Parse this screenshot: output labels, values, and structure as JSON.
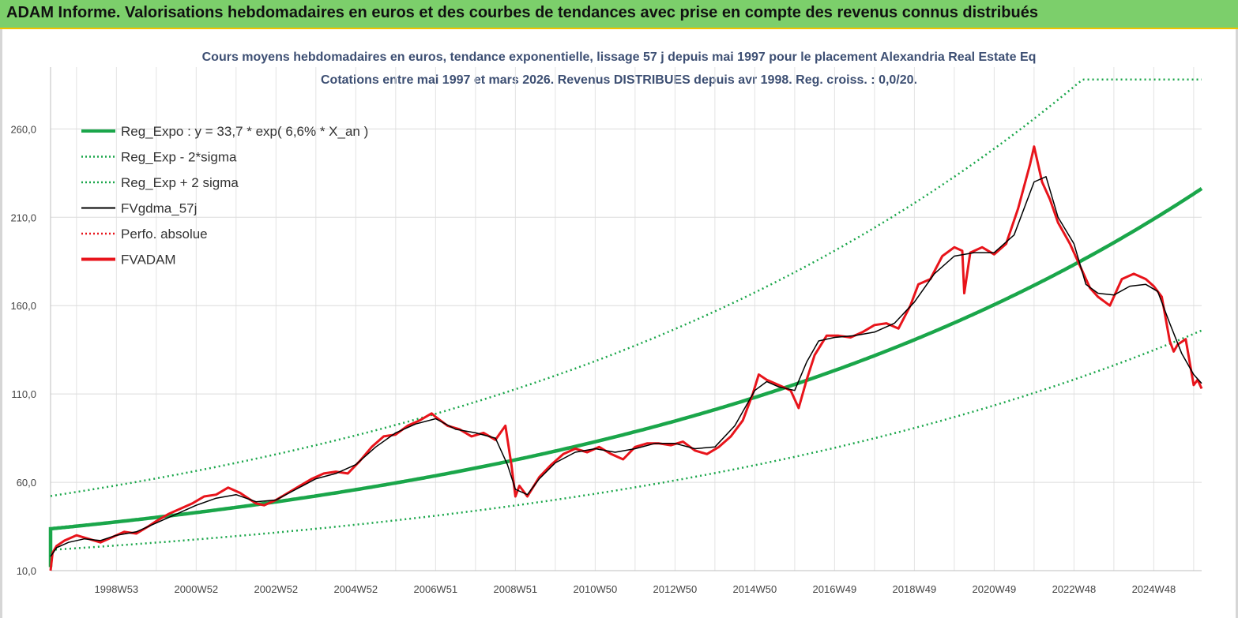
{
  "header": {
    "title": "ADAM Informe. Valorisations hebdomadaires en euros et des courbes de tendances avec prise en compte des revenus connus distribués"
  },
  "colors": {
    "banner": "#7ccf6b",
    "title_text": "#3d4f73",
    "reg_expo": "#1aa64a",
    "price": "#e8141b",
    "smooth": "#000000"
  },
  "chart_data": {
    "type": "line",
    "title": "Cours moyens hebdomadaires en euros, tendance exponentielle, lissage 57 j depuis mai 1997 pour le placement Alexandria Real Estate Eq",
    "subtitle": "Cotations entre mai 1997 et mars 2026. Revenus DISTRIBUES depuis avr 1998. Reg. croiss. : 0,0/20.",
    "xlabel": "",
    "ylabel": "",
    "xlim": [
      1997.35,
      2026.2
    ],
    "ylim": [
      10,
      295
    ],
    "y_ticks": [
      "10,0",
      "60,0",
      "110,0",
      "160,0",
      "210,0",
      "260,0"
    ],
    "y_tick_values": [
      10,
      60,
      110,
      160,
      210,
      260
    ],
    "x_ticks": [
      "1998W53",
      "2000W52",
      "2002W52",
      "2004W52",
      "2006W51",
      "2008W51",
      "2010W50",
      "2012W50",
      "2014W50",
      "2016W49",
      "2018W49",
      "2020W49",
      "2022W48",
      "2024W48"
    ],
    "x_tick_values": [
      1999.0,
      2001.0,
      2003.0,
      2005.0,
      2007.0,
      2009.0,
      2011.0,
      2013.0,
      2015.0,
      2017.0,
      2019.0,
      2021.0,
      2023.0,
      2025.0
    ],
    "grid": true,
    "legend_position": "top-left",
    "legend": [
      {
        "label": "Reg_Expo : y = 33,7 * exp( 6,6% *  X_an )",
        "color": "#1aa64a",
        "style": "solid-thick"
      },
      {
        "label": "Reg_Exp - 2*sigma",
        "color": "#1aa64a",
        "style": "dotted"
      },
      {
        "label": "Reg_Exp + 2 sigma",
        "color": "#1aa64a",
        "style": "dotted"
      },
      {
        "label": "FVgdma_57j",
        "color": "#000000",
        "style": "solid-thin"
      },
      {
        "label": "Perfo. absolue",
        "color": "#e8141b",
        "style": "dotted"
      },
      {
        "label": "FVADAM",
        "color": "#e8141b",
        "style": "solid-thick"
      }
    ],
    "regression": {
      "a": 33.7,
      "growth": 0.066,
      "start_year": 1997.35,
      "lower_factor": 0.645,
      "upper_factor": 1.55,
      "cap": 288
    },
    "series": [
      {
        "name": "FVADAM",
        "x": [
          1997.35,
          1997.4,
          1997.5,
          1997.7,
          1998.0,
          1998.3,
          1998.6,
          1998.9,
          1999.2,
          1999.5,
          1999.8,
          2000.0,
          2000.3,
          2000.6,
          2000.9,
          2001.2,
          2001.5,
          2001.8,
          2002.1,
          2002.3,
          2002.5,
          2002.7,
          2003.0,
          2003.3,
          2003.6,
          2003.9,
          2004.2,
          2004.5,
          2004.8,
          2005.1,
          2005.4,
          2005.7,
          2006.0,
          2006.3,
          2006.6,
          2006.9,
          2007.0,
          2007.3,
          2007.6,
          2007.9,
          2008.2,
          2008.5,
          2008.75,
          2008.9,
          2009.0,
          2009.1,
          2009.3,
          2009.6,
          2009.9,
          2010.2,
          2010.5,
          2010.8,
          2011.1,
          2011.4,
          2011.7,
          2012.0,
          2012.3,
          2012.6,
          2012.9,
          2013.2,
          2013.5,
          2013.8,
          2014.1,
          2014.4,
          2014.7,
          2014.95,
          2015.1,
          2015.3,
          2015.6,
          2015.9,
          2016.1,
          2016.3,
          2016.5,
          2016.8,
          2017.1,
          2017.4,
          2017.7,
          2018.0,
          2018.3,
          2018.6,
          2018.9,
          2019.1,
          2019.4,
          2019.7,
          2020.0,
          2020.2,
          2020.25,
          2020.4,
          2020.7,
          2021.0,
          2021.3,
          2021.6,
          2021.9,
          2022.0,
          2022.2,
          2022.4,
          2022.6,
          2022.9,
          2023.2,
          2023.4,
          2023.6,
          2023.9,
          2024.2,
          2024.5,
          2024.8,
          2025.0,
          2025.2,
          2025.4,
          2025.5,
          2025.6,
          2025.8,
          2026.0,
          2026.1,
          2026.2
        ],
        "y": [
          10,
          20,
          24,
          27,
          30,
          28,
          26,
          29,
          32,
          31,
          35,
          38,
          42,
          45,
          48,
          52,
          53,
          57,
          54,
          51,
          48,
          47,
          50,
          54,
          58,
          62,
          65,
          66,
          65,
          72,
          80,
          86,
          87,
          92,
          95,
          99,
          97,
          92,
          90,
          86,
          88,
          84,
          92,
          70,
          52,
          58,
          52,
          63,
          70,
          76,
          79,
          77,
          80,
          76,
          73,
          80,
          82,
          82,
          81,
          83,
          78,
          76,
          80,
          86,
          95,
          110,
          121,
          118,
          115,
          112,
          102,
          118,
          132,
          143,
          143,
          142,
          145,
          149,
          150,
          147,
          160,
          172,
          175,
          188,
          193,
          191,
          167,
          190,
          193,
          189,
          195,
          215,
          240,
          250,
          230,
          220,
          207,
          195,
          180,
          170,
          165,
          160,
          175,
          178,
          175,
          171,
          165,
          140,
          134,
          138,
          141,
          115,
          118,
          113
        ]
      },
      {
        "name": "FVgdma_57j",
        "x": [
          1997.35,
          1997.5,
          1997.8,
          1998.2,
          1998.6,
          1999.0,
          1999.5,
          2000.0,
          2000.5,
          2001.0,
          2001.5,
          2002.0,
          2002.5,
          2003.0,
          2003.5,
          2004.0,
          2004.5,
          2005.0,
          2005.5,
          2006.0,
          2006.5,
          2007.0,
          2007.5,
          2008.0,
          2008.5,
          2008.8,
          2009.0,
          2009.3,
          2009.6,
          2010.0,
          2010.5,
          2011.0,
          2011.5,
          2012.0,
          2012.5,
          2013.0,
          2013.5,
          2014.0,
          2014.5,
          2015.0,
          2015.3,
          2015.6,
          2016.0,
          2016.3,
          2016.6,
          2017.0,
          2017.5,
          2018.0,
          2018.5,
          2019.0,
          2019.5,
          2020.0,
          2020.5,
          2021.0,
          2021.5,
          2022.0,
          2022.3,
          2022.6,
          2023.0,
          2023.3,
          2023.6,
          2024.0,
          2024.4,
          2024.8,
          2025.1,
          2025.4,
          2025.7,
          2026.0,
          2026.2
        ],
        "y": [
          18,
          23,
          26,
          28,
          27,
          30,
          32,
          37,
          42,
          47,
          51,
          53,
          49,
          50,
          56,
          62,
          65,
          70,
          80,
          88,
          93,
          96,
          90,
          88,
          85,
          70,
          56,
          53,
          62,
          71,
          77,
          79,
          77,
          79,
          82,
          82,
          79,
          80,
          92,
          112,
          117,
          114,
          112,
          128,
          140,
          142,
          143,
          145,
          150,
          162,
          178,
          188,
          190,
          190,
          200,
          230,
          233,
          210,
          195,
          172,
          167,
          166,
          171,
          172,
          168,
          150,
          133,
          121,
          116
        ]
      }
    ]
  }
}
